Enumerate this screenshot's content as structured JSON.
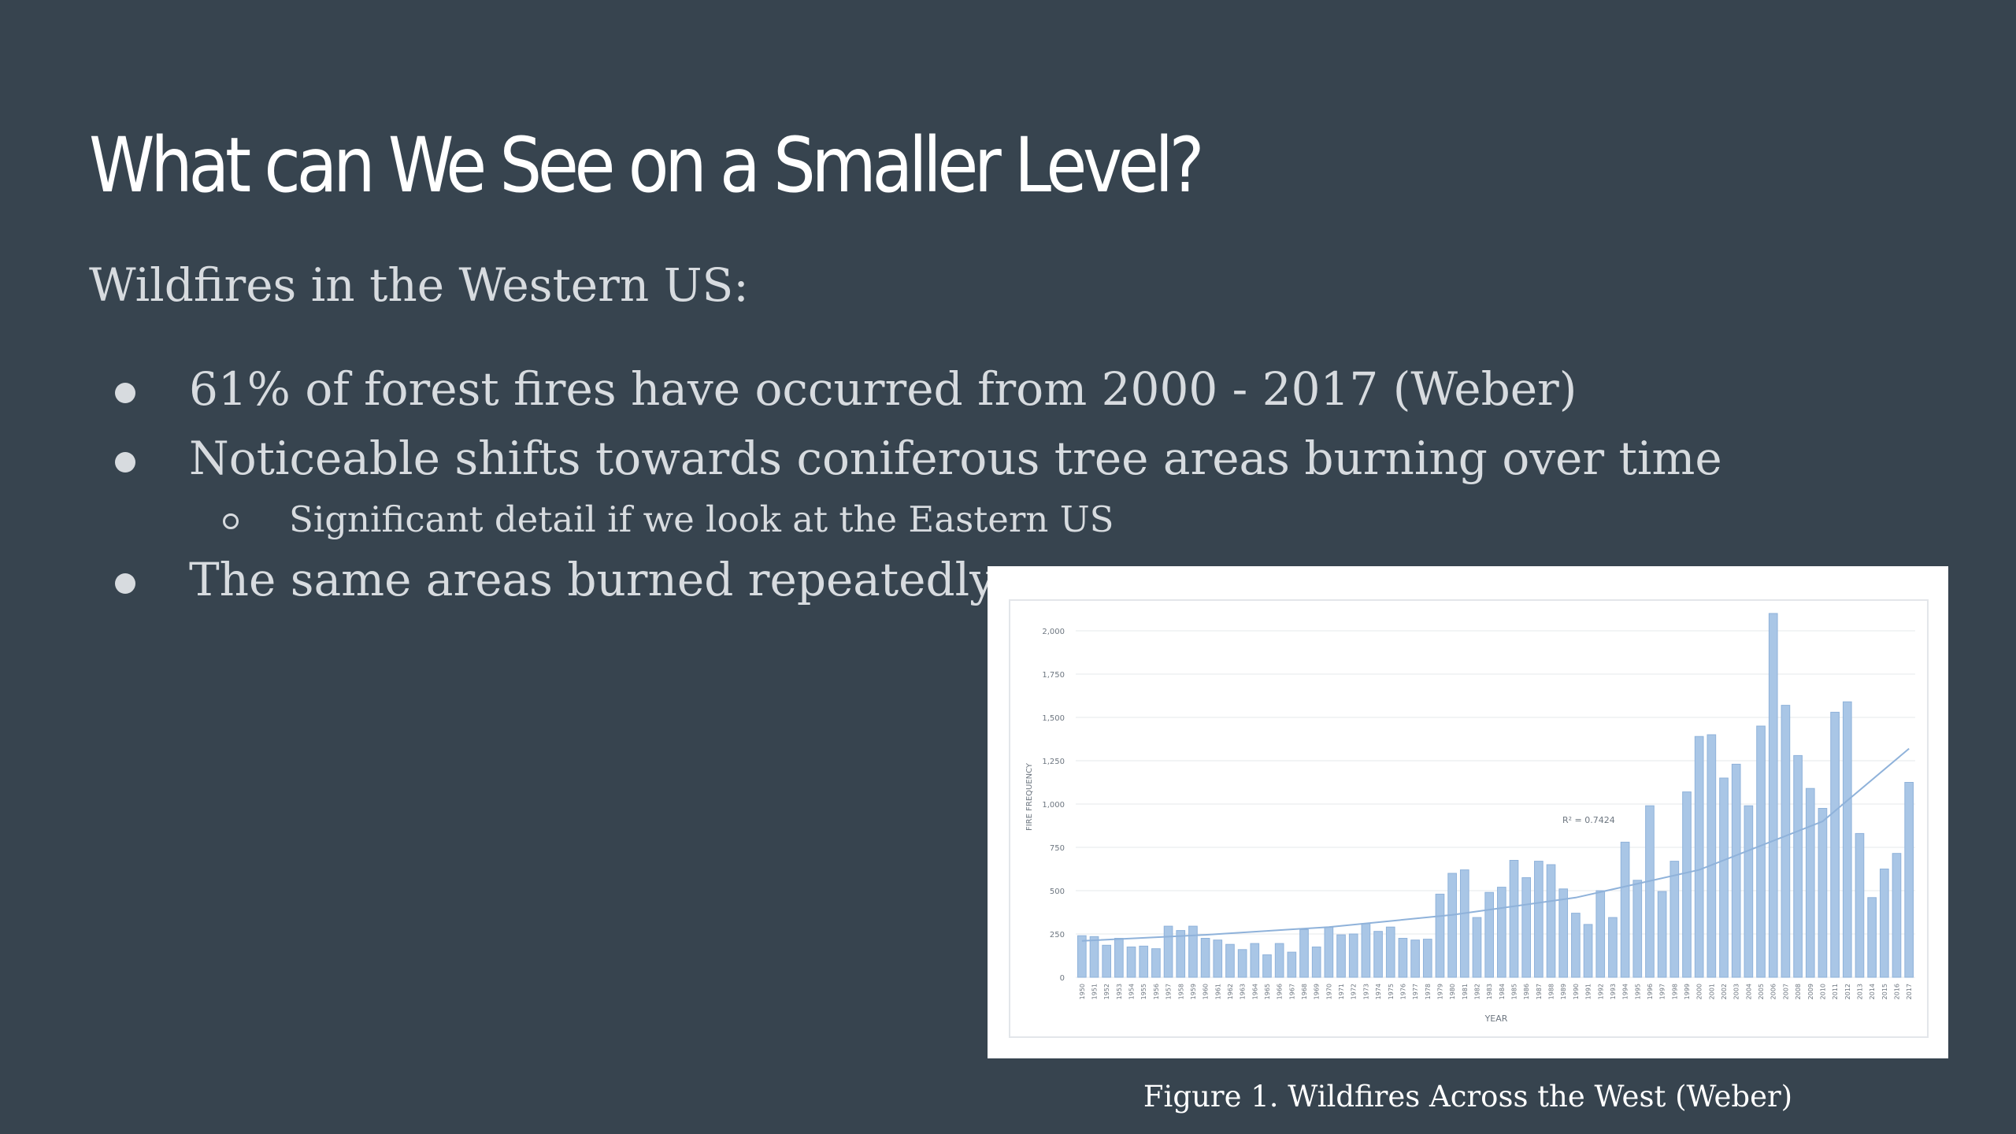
{
  "slide": {
    "title": "What can We See on a Smaller Level?",
    "subtitle": "Wildfires in the Western US:",
    "bullets": [
      "61% of forest fires have occurred from 2000 - 2017  (Weber)",
      "Noticeable shifts towards coniferous tree areas burning over time",
      "The same areas burned repeatedly"
    ],
    "sub_bullets": [
      "Significant detail if we look at the Eastern US"
    ],
    "caption": "Figure 1. Wildfires Across the West (Weber)"
  },
  "colors": {
    "background": "#37444f",
    "bar_fill": "#a9c6e6",
    "bar_stroke": "#8fb2da",
    "trend_line": "#8fb2da"
  },
  "chart_data": {
    "type": "bar",
    "title": "",
    "xlabel": "YEAR",
    "ylabel": "FIRE FREQUENCY",
    "ylim": [
      0,
      2000
    ],
    "yticks": [
      0,
      250,
      500,
      750,
      1000,
      1250,
      1500,
      1750,
      2000
    ],
    "ytick_labels": [
      "0",
      "250",
      "500",
      "750",
      "1,000",
      "1,250",
      "1,500",
      "1,750",
      "2,000"
    ],
    "grid": true,
    "legend": "none",
    "annotation": "R² = 0.7424",
    "trendline": {
      "type": "exponential",
      "points": [
        [
          1950,
          210
        ],
        [
          1960,
          245
        ],
        [
          1970,
          290
        ],
        [
          1980,
          360
        ],
        [
          1990,
          460
        ],
        [
          2000,
          620
        ],
        [
          2010,
          900
        ],
        [
          2017,
          1320
        ]
      ]
    },
    "categories": [
      "1950",
      "1951",
      "1952",
      "1953",
      "1954",
      "1955",
      "1956",
      "1957",
      "1958",
      "1959",
      "1960",
      "1961",
      "1962",
      "1963",
      "1964",
      "1965",
      "1966",
      "1967",
      "1968",
      "1969",
      "1970",
      "1971",
      "1972",
      "1973",
      "1974",
      "1975",
      "1976",
      "1977",
      "1978",
      "1979",
      "1980",
      "1981",
      "1982",
      "1983",
      "1984",
      "1985",
      "1986",
      "1987",
      "1988",
      "1989",
      "1990",
      "1991",
      "1992",
      "1993",
      "1994",
      "1995",
      "1996",
      "1997",
      "1998",
      "1999",
      "2000",
      "2001",
      "2002",
      "2003",
      "2004",
      "2005",
      "2006",
      "2007",
      "2008",
      "2009",
      "2010",
      "2011",
      "2012",
      "2013",
      "2014",
      "2015",
      "2016",
      "2017"
    ],
    "values": [
      240,
      235,
      185,
      225,
      175,
      180,
      165,
      295,
      270,
      295,
      225,
      215,
      190,
      160,
      195,
      130,
      195,
      145,
      275,
      175,
      290,
      245,
      250,
      310,
      265,
      290,
      225,
      215,
      220,
      480,
      600,
      620,
      345,
      490,
      520,
      675,
      575,
      670,
      650,
      510,
      370,
      305,
      500,
      345,
      780,
      560,
      990,
      495,
      670,
      1070,
      1390,
      1400,
      1150,
      1230,
      990,
      1450,
      2100,
      1570,
      1280,
      1090,
      975,
      1530,
      1590,
      830,
      460,
      625,
      715,
      1125
    ]
  }
}
